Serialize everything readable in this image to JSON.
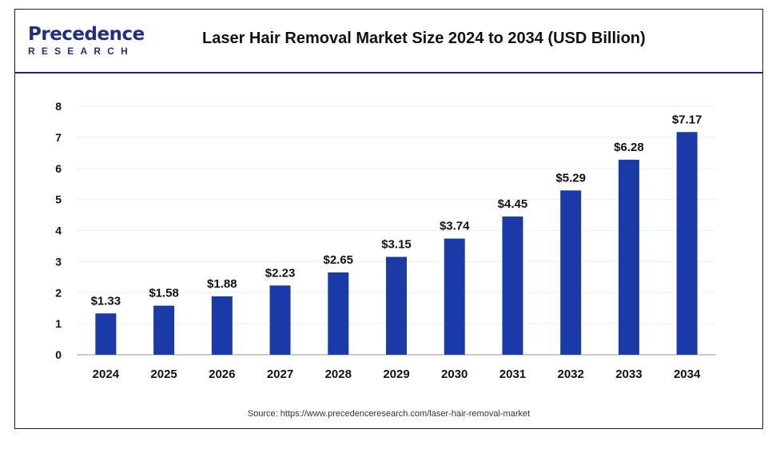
{
  "brand": {
    "name_top": "Precedence",
    "name_bottom": "RESEARCH"
  },
  "colors": {
    "bar": "#1a3aa8",
    "axis": "#999999",
    "grid": "#eeeeee",
    "brand": "#1f2f86"
  },
  "chart_data": {
    "type": "bar",
    "title": "Laser Hair Removal Market Size 2024 to 2034 (USD Billion)",
    "categories": [
      "2024",
      "2025",
      "2026",
      "2027",
      "2028",
      "2029",
      "2030",
      "2031",
      "2032",
      "2033",
      "2034"
    ],
    "values": [
      1.33,
      1.58,
      1.88,
      2.23,
      2.65,
      3.15,
      3.74,
      4.45,
      5.29,
      6.28,
      7.17
    ],
    "data_labels": [
      "$1.33",
      "$1.58",
      "$1.88",
      "$2.23",
      "$2.65",
      "$3.15",
      "$3.74",
      "$4.45",
      "$5.29",
      "$6.28",
      "$7.17"
    ],
    "yticks": [
      "0",
      "1",
      "2",
      "3",
      "4",
      "5",
      "6",
      "7",
      "8"
    ],
    "ylim": [
      0,
      8
    ],
    "xlabel": "",
    "ylabel": "",
    "grid": true,
    "legend": "none"
  },
  "source": "Source: https://www.precedenceresearch.com/laser-hair-removal-market"
}
